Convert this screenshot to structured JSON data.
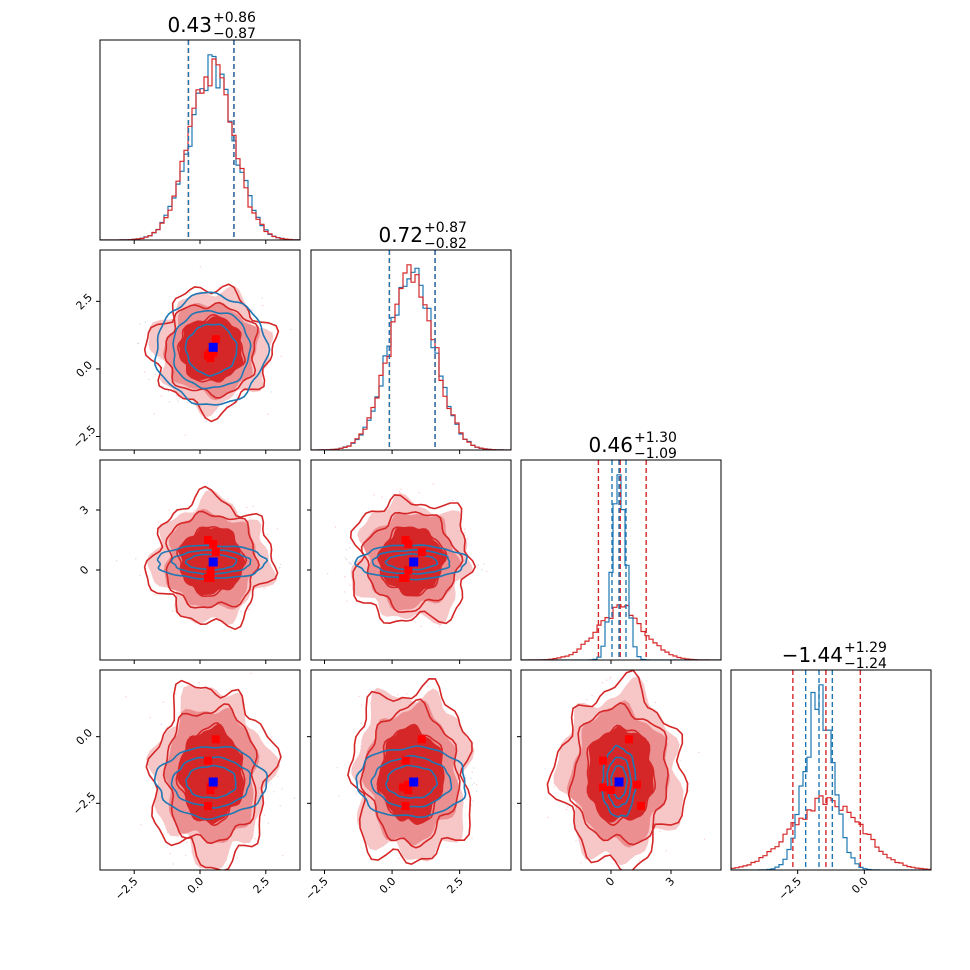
{
  "chart_data": {
    "type": "corner",
    "colors": {
      "red": "#d62728",
      "blue": "#1f77b4",
      "marker_blue": "#0000ff",
      "marker_red": "#ff0000"
    },
    "params": [
      {
        "range": [
          -3.8,
          3.8
        ],
        "ticks": [
          -2.5,
          0.0,
          2.5
        ],
        "tick_labels": [
          "−2.5",
          "0.0",
          "2.5"
        ]
      },
      {
        "range": [
          -3.0,
          4.4
        ],
        "ticks": [
          -2.5,
          0.0,
          2.5
        ],
        "tick_labels": [
          "−2.5",
          "0.0",
          "2.5"
        ]
      },
      {
        "range": [
          -4.5,
          5.5
        ],
        "ticks": [
          0,
          3
        ],
        "tick_labels": [
          "0",
          "3"
        ]
      },
      {
        "range": [
          -5.0,
          2.5
        ],
        "ticks": [
          -2.5,
          0.0
        ],
        "tick_labels": [
          "−2.5",
          "0.0"
        ]
      }
    ],
    "titles": [
      {
        "median": "0.43",
        "plus": "+0.86",
        "minus": "−0.87"
      },
      {
        "median": "0.72",
        "plus": "+0.87",
        "minus": "−0.82"
      },
      {
        "median": "0.46",
        "plus": "+1.30",
        "minus": "−1.09"
      },
      {
        "median": "−1.44",
        "plus": "+1.29",
        "minus": "−1.24"
      }
    ],
    "series": [
      {
        "name": "red",
        "mean": [
          0.43,
          0.72,
          0.46,
          -1.44
        ],
        "std": [
          0.87,
          0.85,
          1.2,
          1.27
        ],
        "quantiles": [
          [
            -0.44,
            1.29
          ],
          [
            -0.1,
            1.59
          ],
          [
            -0.63,
            1.76
          ],
          [
            -2.68,
            -0.15
          ]
        ],
        "points": [
          [
            0.3,
            0.5,
            1.5,
            -2.6
          ],
          [
            0.6,
            1.1,
            0.9,
            -0.1
          ],
          [
            0.3,
            0.5,
            -0.4,
            -0.9
          ],
          [
            0.4,
            0.6,
            0.0,
            -2.0
          ],
          [
            0.5,
            0.6,
            1.3,
            -1.8
          ],
          [
            0.4,
            0.4,
            -0.4,
            -1.9
          ]
        ]
      },
      {
        "name": "blue",
        "mean": [
          0.43,
          0.72,
          0.4,
          -1.7
        ],
        "std": [
          0.87,
          0.85,
          0.35,
          0.55
        ],
        "quantiles": [
          [
            -0.44,
            1.29
          ],
          [
            -0.1,
            1.59
          ],
          [
            0.05,
            0.75
          ],
          [
            -2.2,
            -1.2
          ]
        ],
        "truth": [
          0.5,
          0.8,
          0.4,
          -1.7
        ]
      }
    ]
  }
}
